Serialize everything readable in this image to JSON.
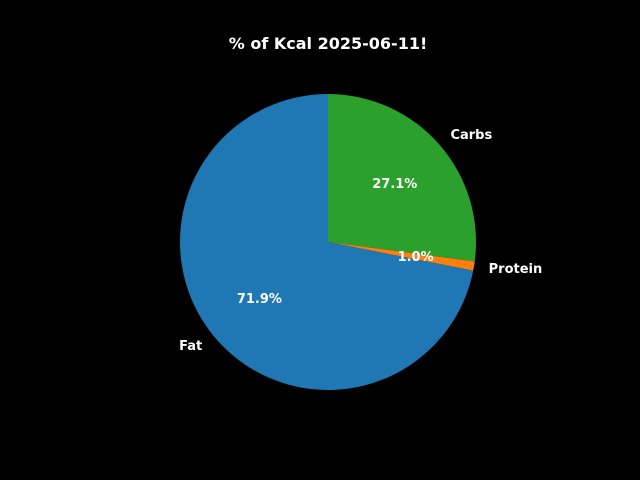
{
  "chart_data": {
    "type": "pie",
    "title": "% of Kcal 2025-06-11!",
    "categories": [
      "Carbs",
      "Protein",
      "Fat"
    ],
    "values": [
      27.1,
      1.0,
      71.9
    ],
    "value_labels": [
      "27.1%",
      "1.0%",
      "71.9%"
    ],
    "colors": [
      "#2ca02c",
      "#ff7f0e",
      "#1f77b4"
    ],
    "start_angle_deg": 90,
    "direction": "clockwise",
    "legend": "none",
    "background": "#000000"
  }
}
